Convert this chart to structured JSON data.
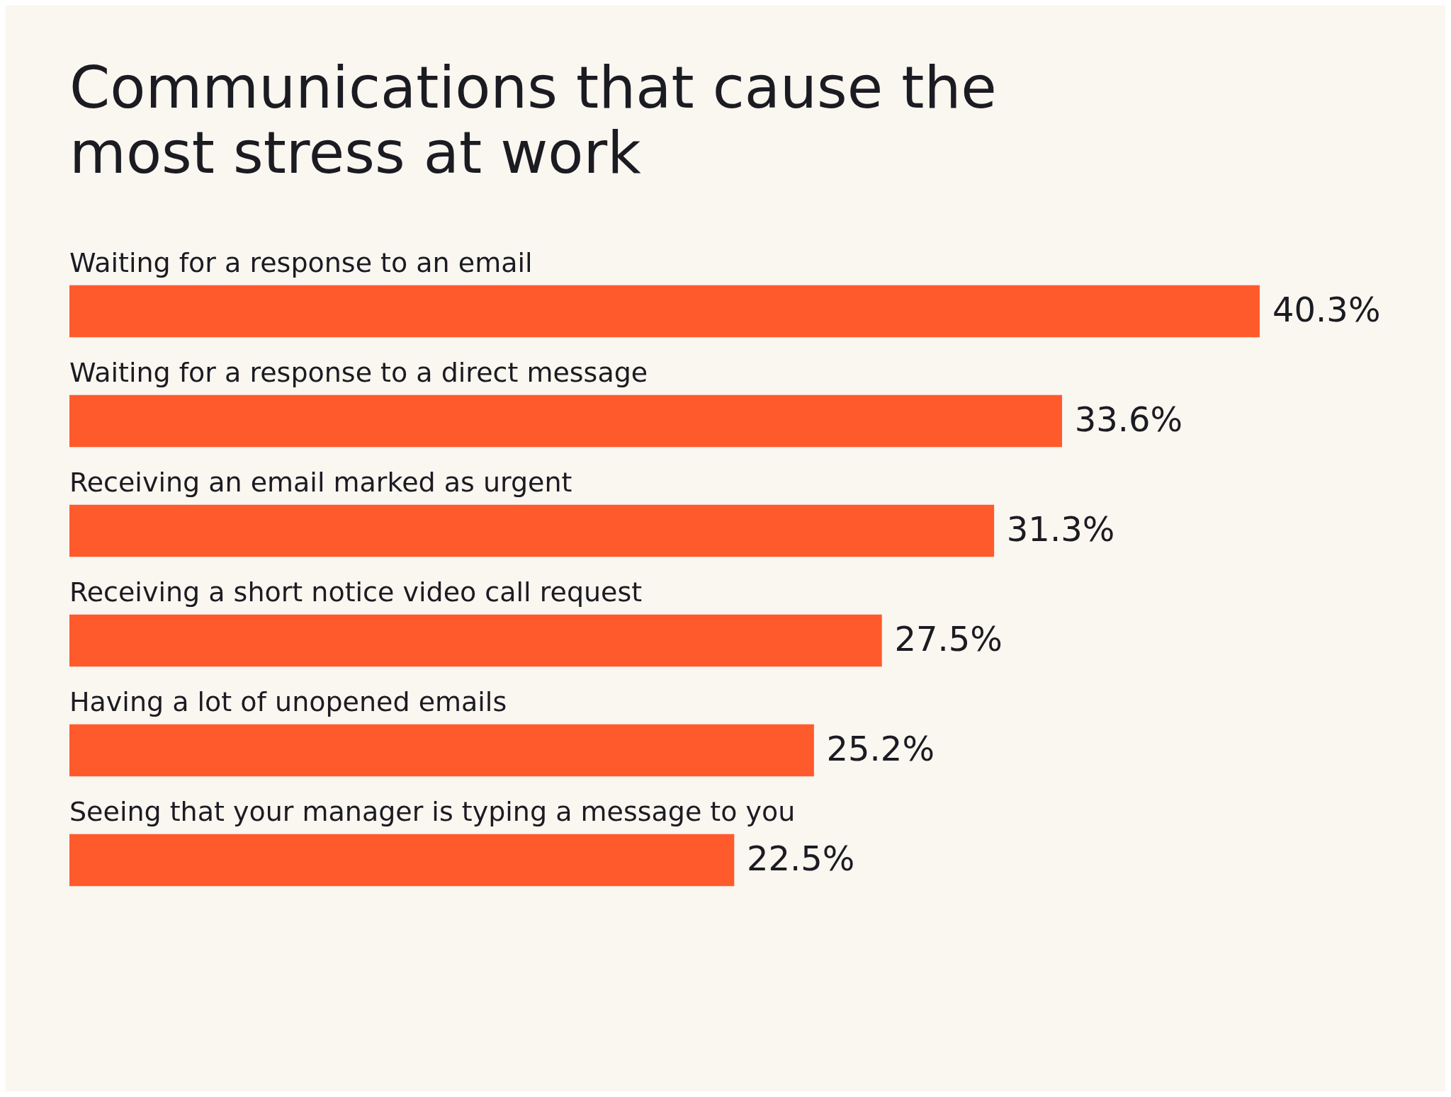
{
  "chart_data": {
    "type": "bar",
    "orientation": "horizontal",
    "title": "Communications that cause the most stress at work",
    "categories": [
      "Waiting for a response to an email",
      "Waiting for a response to a direct message",
      "Receiving an email marked as urgent",
      "Receiving a short notice video call request",
      "Having a lot of unopened emails",
      "Seeing that your manager is typing a message to you"
    ],
    "values": [
      40.3,
      33.6,
      31.3,
      27.5,
      25.2,
      22.5
    ],
    "value_labels": [
      "40.3%",
      "33.6%",
      "31.3%",
      "27.5%",
      "25.2%",
      "22.5%"
    ],
    "color": "#ff5a2c"
  }
}
